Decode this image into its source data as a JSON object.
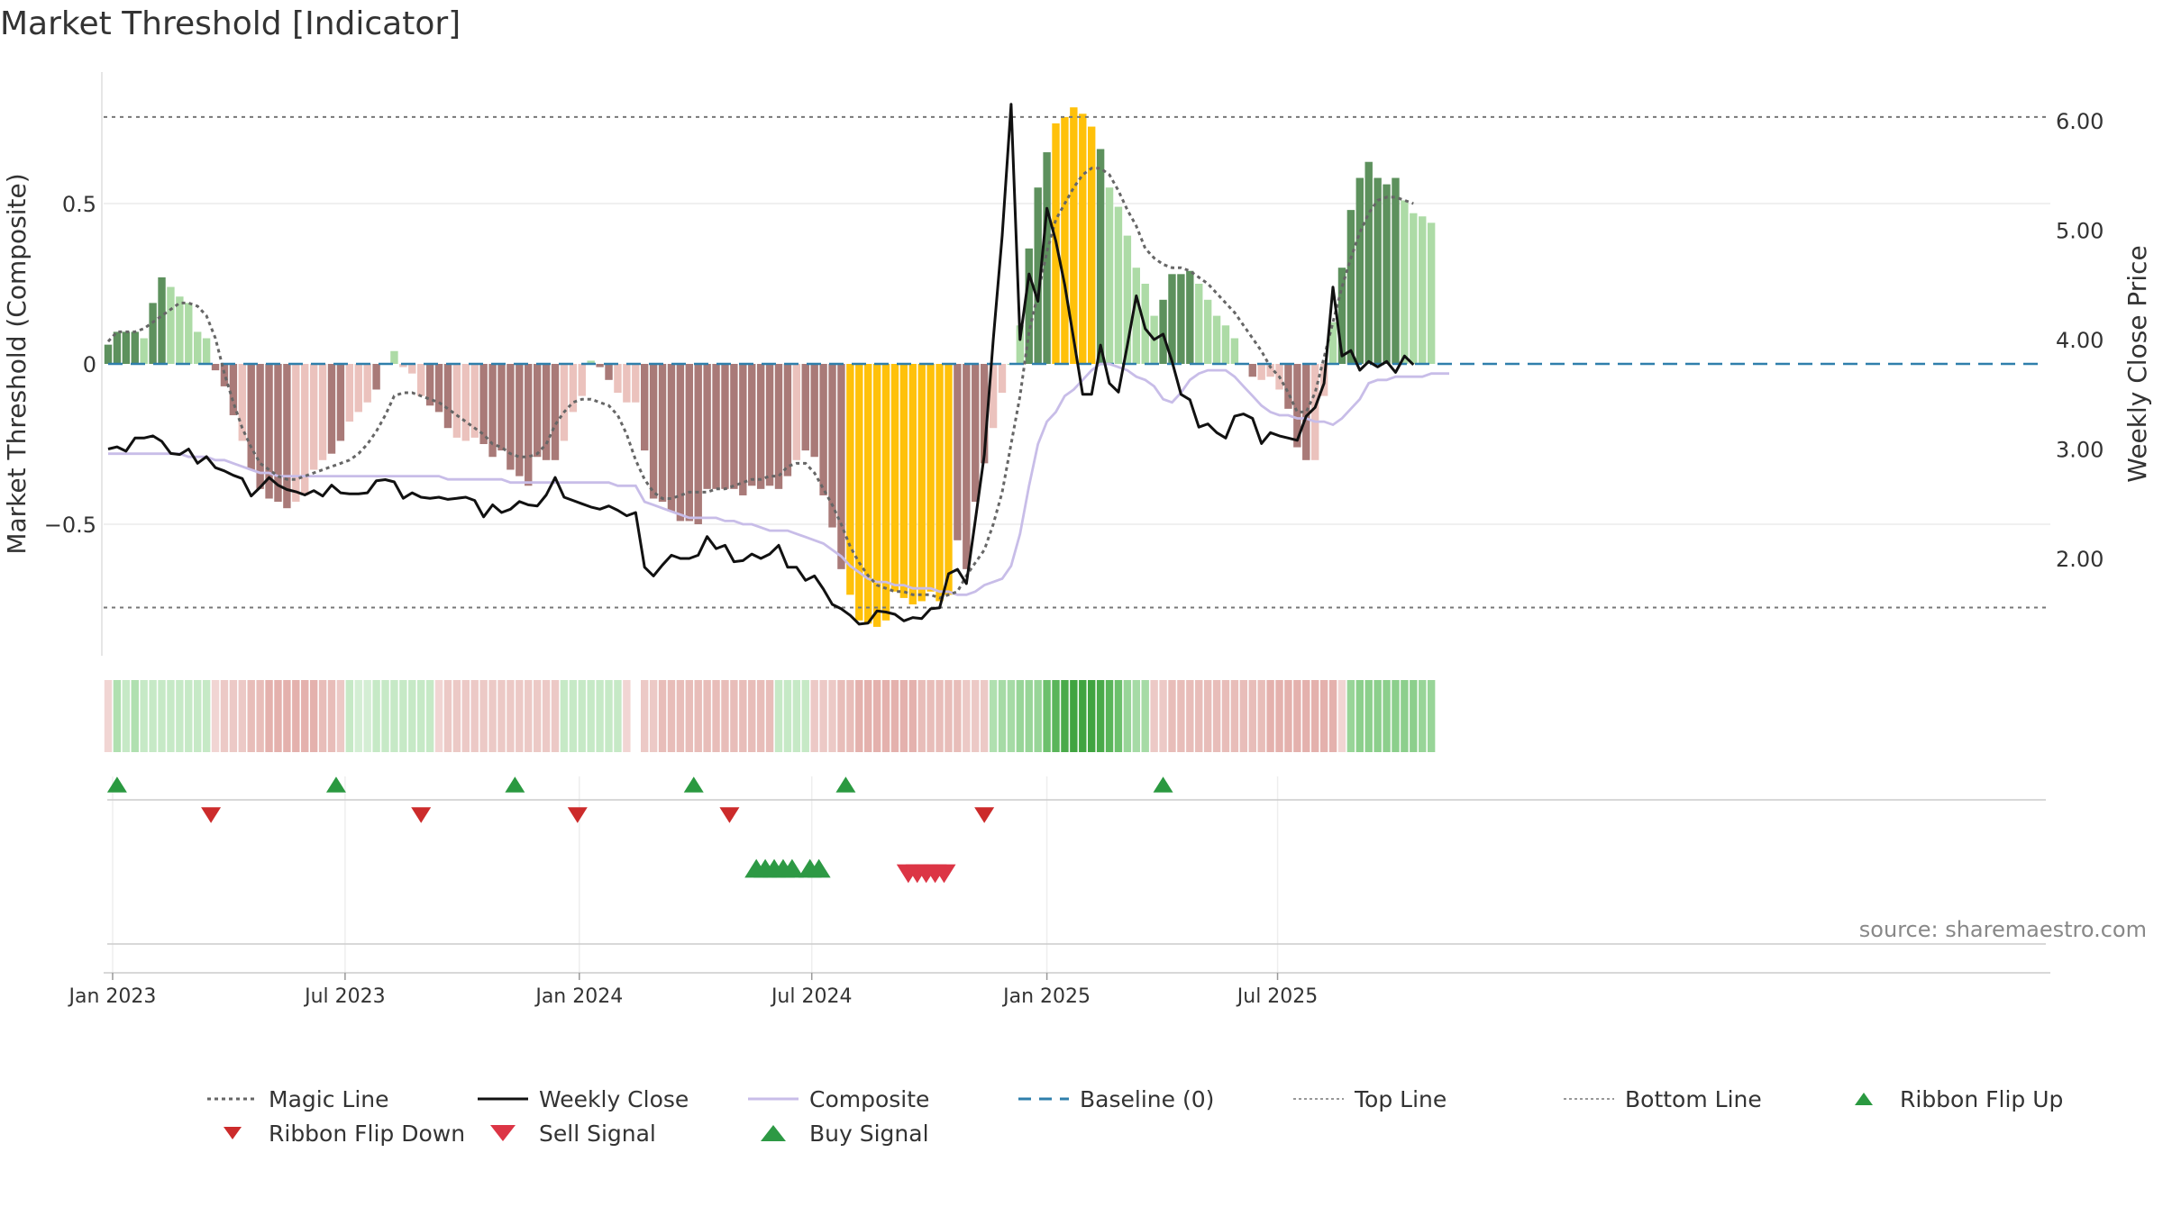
{
  "chart_data": {
    "type": "bar",
    "title": "Market Threshold [Indicator]",
    "ylabel_left": "Market Threshold (Composite)",
    "ylabel_right": "Weekly Close Price",
    "source_text": "source: sharemaestro.com",
    "ylim_left": [
      -0.91,
      0.91
    ],
    "ylim_right": [
      1.2,
      6.3
    ],
    "yticks_left": [
      {
        "v": 0.5,
        "label": "0.5"
      },
      {
        "v": 0,
        "label": "0"
      },
      {
        "v": -0.5,
        "label": "−0.5"
      }
    ],
    "yticks_right": [
      {
        "v": 6,
        "label": "6.00"
      },
      {
        "v": 5,
        "label": "5.00"
      },
      {
        "v": 4,
        "label": "4.00"
      },
      {
        "v": 3,
        "label": "3.00"
      },
      {
        "v": 2,
        "label": "2.00"
      }
    ],
    "xticks": [
      {
        "w": 0.5,
        "label": "Jan 2023"
      },
      {
        "w": 26.5,
        "label": "Jul 2023"
      },
      {
        "w": 52.7,
        "label": "Jan 2024"
      },
      {
        "w": 78.7,
        "label": "Jul 2024"
      },
      {
        "w": 105,
        "label": "Jan 2025"
      },
      {
        "w": 130.8,
        "label": "Jul 2025"
      }
    ],
    "top_line": 0.77,
    "bottom_line": -0.76,
    "baseline": 0,
    "composite_bars": [
      0.06,
      0.1,
      0.1,
      0.1,
      0.08,
      0.19,
      0.27,
      0.24,
      0.21,
      0.19,
      0.1,
      0.08,
      -0.02,
      -0.07,
      -0.16,
      -0.24,
      -0.33,
      -0.39,
      -0.42,
      -0.43,
      -0.45,
      -0.43,
      -0.41,
      -0.33,
      -0.3,
      -0.28,
      -0.24,
      -0.18,
      -0.15,
      -0.12,
      -0.08,
      0.0,
      0.04,
      -0.01,
      -0.03,
      -0.1,
      -0.13,
      -0.15,
      -0.2,
      -0.23,
      -0.24,
      -0.23,
      -0.25,
      -0.29,
      -0.27,
      -0.33,
      -0.35,
      -0.38,
      -0.29,
      -0.3,
      -0.3,
      -0.24,
      -0.15,
      -0.1,
      0.01,
      -0.01,
      -0.05,
      -0.09,
      -0.12,
      -0.12,
      -0.27,
      -0.42,
      -0.43,
      -0.46,
      -0.49,
      -0.49,
      -0.5,
      -0.39,
      -0.39,
      -0.39,
      -0.39,
      -0.41,
      -0.38,
      -0.39,
      -0.38,
      -0.39,
      -0.35,
      -0.3,
      -0.27,
      -0.29,
      -0.41,
      -0.51,
      -0.64,
      -0.72,
      -0.8,
      -0.81,
      -0.82,
      -0.8,
      -0.71,
      -0.73,
      -0.75,
      -0.74,
      -0.71,
      -0.74,
      -0.72,
      -0.55,
      -0.64,
      -0.43,
      -0.31,
      -0.2,
      -0.09,
      0.0,
      0.12,
      0.36,
      0.55,
      0.66,
      0.75,
      0.77,
      0.8,
      0.78,
      0.74,
      0.67,
      0.55,
      0.49,
      0.4,
      0.3,
      0.25,
      0.15,
      0.2,
      0.28,
      0.28,
      0.29,
      0.25,
      0.2,
      0.15,
      0.12,
      0.08,
      0.0,
      -0.04,
      -0.05,
      -0.04,
      -0.08,
      -0.14,
      -0.26,
      -0.3,
      -0.3,
      -0.1,
      0.13,
      0.3,
      0.48,
      0.58,
      0.63,
      0.58,
      0.56,
      0.58,
      0.51,
      0.47,
      0.46,
      0.44
    ],
    "bar_colors": {
      "pos_strong": "#5d915d",
      "pos_light": "#addba6",
      "neg_strong": "#a97a78",
      "neg_light": "#ebc2bd",
      "extreme": "#ffc10a"
    },
    "weekly_close": [
      3.0,
      3.02,
      2.98,
      3.1,
      3.1,
      3.12,
      3.07,
      2.96,
      2.95,
      3.0,
      2.87,
      2.93,
      2.83,
      2.8,
      2.76,
      2.73,
      2.57,
      2.65,
      2.74,
      2.67,
      2.63,
      2.61,
      2.58,
      2.62,
      2.57,
      2.67,
      2.6,
      2.59,
      2.59,
      2.6,
      2.71,
      2.72,
      2.7,
      2.55,
      2.6,
      2.56,
      2.55,
      2.56,
      2.54,
      2.55,
      2.56,
      2.53,
      2.38,
      2.49,
      2.42,
      2.45,
      2.52,
      2.49,
      2.48,
      2.58,
      2.74,
      2.56,
      2.53,
      2.5,
      2.47,
      2.45,
      2.48,
      2.44,
      2.39,
      2.42,
      1.92,
      1.84,
      1.94,
      2.03,
      2.0,
      2.0,
      2.03,
      2.2,
      2.09,
      2.12,
      1.97,
      1.98,
      2.04,
      2.0,
      2.04,
      2.12,
      1.92,
      1.92,
      1.8,
      1.84,
      1.72,
      1.58,
      1.54,
      1.48,
      1.4,
      1.41,
      1.52,
      1.51,
      1.49,
      1.43,
      1.46,
      1.45,
      1.54,
      1.55,
      1.86,
      1.9,
      1.77,
      2.35,
      2.95,
      4.0,
      4.95,
      6.15,
      4.0,
      4.6,
      4.35,
      5.2,
      4.9,
      4.5,
      4.0,
      3.5,
      3.5,
      3.95,
      3.6,
      3.52,
      3.95,
      4.4,
      4.1,
      4.0,
      4.05,
      3.8,
      3.5,
      3.45,
      3.2,
      3.23,
      3.15,
      3.1,
      3.3,
      3.32,
      3.28,
      3.05,
      3.15,
      3.12,
      3.1,
      3.08,
      3.3,
      3.38,
      3.6,
      4.48,
      3.85,
      3.9,
      3.72,
      3.8,
      3.75,
      3.8,
      3.7,
      3.85,
      3.77
    ],
    "composite_line": [
      -0.28,
      -0.28,
      -0.28,
      -0.28,
      -0.28,
      -0.28,
      -0.28,
      -0.28,
      -0.28,
      -0.29,
      -0.29,
      -0.29,
      -0.3,
      -0.3,
      -0.31,
      -0.32,
      -0.33,
      -0.34,
      -0.34,
      -0.35,
      -0.35,
      -0.35,
      -0.35,
      -0.35,
      -0.35,
      -0.35,
      -0.35,
      -0.35,
      -0.35,
      -0.35,
      -0.35,
      -0.35,
      -0.35,
      -0.35,
      -0.35,
      -0.35,
      -0.35,
      -0.35,
      -0.36,
      -0.36,
      -0.36,
      -0.36,
      -0.36,
      -0.36,
      -0.36,
      -0.37,
      -0.37,
      -0.37,
      -0.37,
      -0.37,
      -0.37,
      -0.37,
      -0.37,
      -0.37,
      -0.37,
      -0.37,
      -0.37,
      -0.38,
      -0.38,
      -0.38,
      -0.43,
      -0.44,
      -0.45,
      -0.46,
      -0.47,
      -0.48,
      -0.48,
      -0.48,
      -0.48,
      -0.49,
      -0.49,
      -0.5,
      -0.5,
      -0.51,
      -0.52,
      -0.52,
      -0.52,
      -0.53,
      -0.54,
      -0.55,
      -0.56,
      -0.58,
      -0.6,
      -0.63,
      -0.65,
      -0.67,
      -0.68,
      -0.68,
      -0.69,
      -0.69,
      -0.7,
      -0.7,
      -0.7,
      -0.71,
      -0.71,
      -0.72,
      -0.72,
      -0.71,
      -0.69,
      -0.68,
      -0.67,
      -0.63,
      -0.53,
      -0.38,
      -0.25,
      -0.18,
      -0.15,
      -0.1,
      -0.08,
      -0.05,
      -0.02,
      0.0,
      0.0,
      -0.01,
      -0.02,
      -0.04,
      -0.05,
      -0.07,
      -0.11,
      -0.12,
      -0.09,
      -0.05,
      -0.03,
      -0.02,
      -0.02,
      -0.02,
      -0.04,
      -0.07,
      -0.1,
      -0.13,
      -0.15,
      -0.16,
      -0.16,
      -0.17,
      -0.17,
      -0.18,
      -0.18,
      -0.19,
      -0.17,
      -0.14,
      -0.11,
      -0.06,
      -0.05,
      -0.05,
      -0.04,
      -0.04,
      -0.04,
      -0.04,
      -0.03,
      -0.03,
      -0.03
    ],
    "magic_line": [
      0.07,
      0.1,
      0.1,
      0.1,
      0.11,
      0.13,
      0.15,
      0.17,
      0.19,
      0.19,
      0.18,
      0.15,
      0.08,
      -0.03,
      -0.12,
      -0.2,
      -0.26,
      -0.31,
      -0.33,
      -0.35,
      -0.36,
      -0.36,
      -0.35,
      -0.34,
      -0.33,
      -0.32,
      -0.31,
      -0.3,
      -0.28,
      -0.25,
      -0.21,
      -0.16,
      -0.1,
      -0.09,
      -0.09,
      -0.1,
      -0.11,
      -0.12,
      -0.14,
      -0.16,
      -0.18,
      -0.2,
      -0.22,
      -0.25,
      -0.26,
      -0.28,
      -0.29,
      -0.29,
      -0.28,
      -0.25,
      -0.19,
      -0.15,
      -0.12,
      -0.11,
      -0.11,
      -0.12,
      -0.13,
      -0.16,
      -0.22,
      -0.3,
      -0.36,
      -0.4,
      -0.42,
      -0.42,
      -0.41,
      -0.4,
      -0.4,
      -0.4,
      -0.39,
      -0.39,
      -0.38,
      -0.37,
      -0.36,
      -0.36,
      -0.35,
      -0.35,
      -0.32,
      -0.31,
      -0.31,
      -0.34,
      -0.39,
      -0.44,
      -0.5,
      -0.57,
      -0.62,
      -0.66,
      -0.69,
      -0.7,
      -0.71,
      -0.71,
      -0.72,
      -0.72,
      -0.72,
      -0.73,
      -0.72,
      -0.71,
      -0.66,
      -0.62,
      -0.58,
      -0.5,
      -0.4,
      -0.25,
      -0.1,
      0.1,
      0.22,
      0.35,
      0.45,
      0.5,
      0.55,
      0.59,
      0.61,
      0.61,
      0.59,
      0.54,
      0.48,
      0.43,
      0.36,
      0.33,
      0.31,
      0.3,
      0.3,
      0.29,
      0.27,
      0.25,
      0.22,
      0.19,
      0.16,
      0.12,
      0.08,
      0.04,
      -0.01,
      -0.04,
      -0.09,
      -0.15,
      -0.15,
      -0.09,
      0.02,
      0.13,
      0.24,
      0.33,
      0.41,
      0.47,
      0.51,
      0.52,
      0.52,
      0.51,
      0.5
    ],
    "ribbon": {
      "colors": [
        "#f1d5d3",
        "#b0e0b0",
        "#c6e9c6",
        "#b0e0b0",
        "#c6e9c6",
        "#c6e9c6",
        "#c6e9c6",
        "#c6e9c6",
        "#c6e9c6",
        "#c6e9c6",
        "#c6e9c6",
        "#c6e9c6",
        "#f1d5d3",
        "#ecc9c6",
        "#ecc9c6",
        "#ecc9c6",
        "#e8bdb9",
        "#e8bdb9",
        "#e4b1ad",
        "#e4b1ad",
        "#e4b1ad",
        "#e4b1ad",
        "#e4b1ad",
        "#e4b1ad",
        "#e8bdb9",
        "#e8bdb9",
        "#ecc9c6",
        "#c6e9c6",
        "#d4eed4",
        "#d4eed4",
        "#c6e9c6",
        "#c6e9c6",
        "#c6e9c6",
        "#c6e9c6",
        "#c6e9c6",
        "#c6e9c6",
        "#c6e9c6",
        "#f1d5d3",
        "#ecc9c6",
        "#ecc9c6",
        "#ecc9c6",
        "#ecc9c6",
        "#ecc9c6",
        "#ecc9c6",
        "#ecc9c6",
        "#ecc9c6",
        "#ecc9c6",
        "#ecc9c6",
        "#ecc9c6",
        "#ecc9c6",
        "#ecc9c6",
        "#c6e9c6",
        "#c6e9c6",
        "#c6e9c6",
        "#c6e9c6",
        "#c6e9c6",
        "#c6e9c6",
        "#c6e9c6",
        "#f1d5d3",
        "#ffffff",
        "#ecc9c6",
        "#ecc9c6",
        "#e8bdb9",
        "#e8bdb9",
        "#e8bdb9",
        "#e8bdb9",
        "#e8bdb9",
        "#e8bdb9",
        "#e8bdb9",
        "#e8bdb9",
        "#e8bdb9",
        "#e8bdb9",
        "#e8bdb9",
        "#e8bdb9",
        "#e8bdb9",
        "#c6e9c6",
        "#c6e9c6",
        "#c6e9c6",
        "#c6e9c6",
        "#ecc9c6",
        "#ecc9c6",
        "#ecc9c6",
        "#e8bdb9",
        "#e8bdb9",
        "#e4b1ad",
        "#e4b1ad",
        "#e4b1ad",
        "#e4b1ad",
        "#e4b1ad",
        "#e4b1ad",
        "#e4b1ad",
        "#e8bdb9",
        "#e8bdb9",
        "#e8bdb9",
        "#e8bdb9",
        "#e8bdb9",
        "#ecc9c6",
        "#ecc9c6",
        "#ecc9c6",
        "#b0e0b0",
        "#a6dba6",
        "#a6dba6",
        "#98d598",
        "#98d598",
        "#98d598",
        "#6cc06c",
        "#5ab55a",
        "#4aaa4a",
        "#40a440",
        "#40a440",
        "#40a440",
        "#4aaa4a",
        "#5ab55a",
        "#6cc06c",
        "#98d598",
        "#a6dba6",
        "#a6dba6",
        "#ecc9c6",
        "#ecc9c6",
        "#e8bdb9",
        "#e8bdb9",
        "#e8bdb9",
        "#e8bdb9",
        "#e8bdb9",
        "#e8bdb9",
        "#e8bdb9",
        "#e8bdb9",
        "#e8bdb9",
        "#e8bdb9",
        "#e8bdb9",
        "#e4b1ad",
        "#e4b1ad",
        "#e4b1ad",
        "#e4b1ad",
        "#e4b1ad",
        "#e4b1ad",
        "#e4b1ad",
        "#e4b1ad",
        "#f1d5d3",
        "#98d598",
        "#8ccf8c",
        "#8ccf8c",
        "#8ccf8c",
        "#8ccf8c",
        "#8ccf8c",
        "#8ccf8c",
        "#8ccf8c",
        "#98d598",
        "#98d598"
      ]
    },
    "ribbon_flip_up_weeks": [
      1,
      25.5,
      45.5,
      65.5,
      82.5,
      118
    ],
    "ribbon_flip_down_weeks": [
      11.5,
      35,
      52.5,
      69.5,
      98
    ],
    "buy_signal_weeks": [
      72.5,
      73.5,
      74.5,
      75.5,
      76.5,
      78.5,
      79.5
    ],
    "sell_signal_weeks": [
      89.5,
      90.5,
      91.5,
      92.5,
      93.5
    ],
    "line_colors": {
      "magic": "#666666",
      "close": "#111111",
      "composite": "#c8bde8",
      "baseline": "#2f7fab",
      "threshold": "#777777",
      "flip_up": "#2a9940",
      "flip_down": "#cc2b2b",
      "buy": "#2d9944",
      "sell": "#dc3545"
    },
    "legend": [
      {
        "key": "magic",
        "label": "Magic Line",
        "symbol": "dotted"
      },
      {
        "key": "close",
        "label": "Weekly Close",
        "symbol": "solid"
      },
      {
        "key": "composite",
        "label": "Composite",
        "symbol": "solid-light"
      },
      {
        "key": "baseline",
        "label": "Baseline (0)",
        "symbol": "dashed"
      },
      {
        "key": "top",
        "label": "Top Line",
        "symbol": "dotted-grey"
      },
      {
        "key": "bottom",
        "label": "Bottom Line",
        "symbol": "dotted-grey"
      },
      {
        "key": "flip_up",
        "label": "Ribbon Flip Up",
        "symbol": "triangle-up"
      },
      {
        "key": "flip_down",
        "label": "Ribbon Flip Down",
        "symbol": "triangle-down"
      },
      {
        "key": "sell",
        "label": "Sell Signal",
        "symbol": "triangle-down-big"
      },
      {
        "key": "buy",
        "label": "Buy Signal",
        "symbol": "triangle-up-big"
      }
    ]
  }
}
